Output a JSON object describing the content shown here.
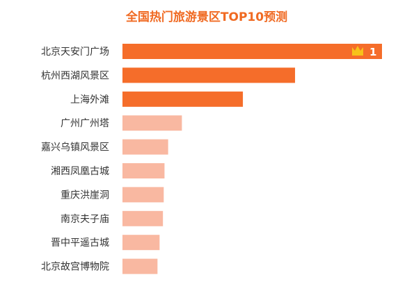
{
  "chart_data": {
    "type": "bar",
    "orientation": "horizontal",
    "title": "全国热门旅游景区TOP10预测",
    "categories": [
      "北京天安门广场",
      "杭州西湖风景区",
      "上海外滩",
      "广州广州塔",
      "嘉兴乌镇风景区",
      "湘西凤凰古城",
      "重庆洪崖洞",
      "南京夫子庙",
      "晋中平遥古城",
      "北京故宫博物院"
    ],
    "values": [
      100,
      66.5,
      46.4,
      22.9,
      17.6,
      16.2,
      15.9,
      15.6,
      14.3,
      13.5
    ],
    "xlim": [
      0,
      100
    ],
    "grid": false,
    "legend": "none",
    "top_badge": {
      "rank_label": "1",
      "icon": "crown-icon"
    },
    "colors": {
      "title": "#f06a22",
      "top3": "#f56d2a",
      "rest": "#f9b8a1",
      "label": "#333333",
      "badge": "#ffffff",
      "crown": "#f7c21a"
    }
  }
}
